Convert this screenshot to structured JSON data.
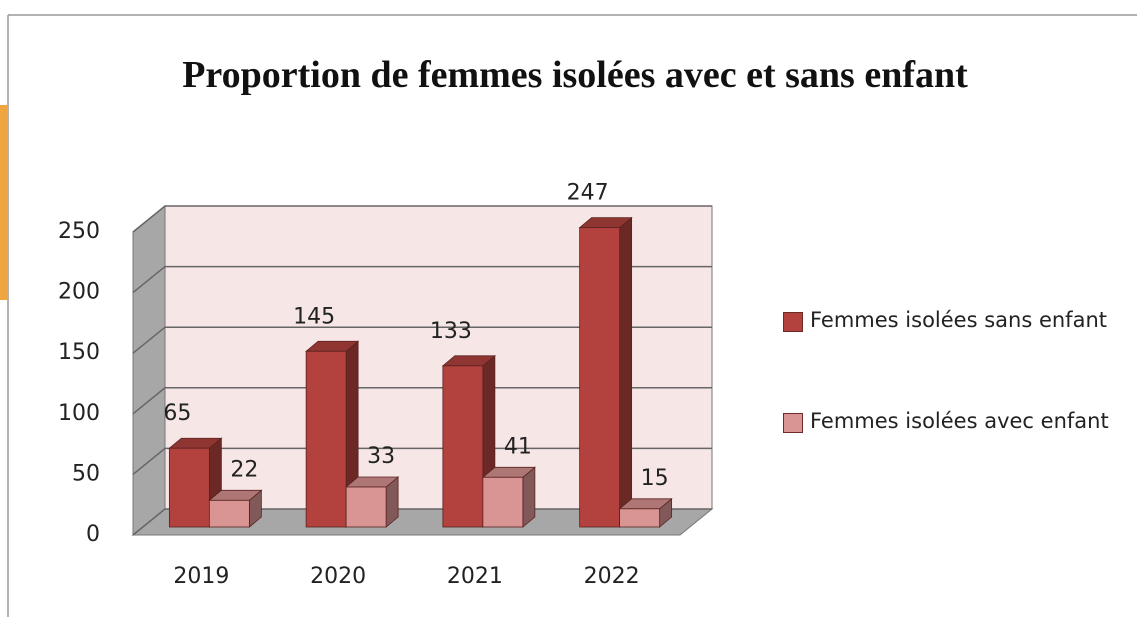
{
  "chart_data": {
    "type": "bar3d",
    "title": "Proportion de femmes isolées avec et sans enfant",
    "categories": [
      "2019",
      "2020",
      "2021",
      "2022"
    ],
    "series": [
      {
        "name": "Femmes isolées sans enfant",
        "color": "#b3423e",
        "values": [
          65,
          145,
          133,
          247
        ]
      },
      {
        "name": "Femmes isolées avec enfant",
        "color": "#d99594",
        "values": [
          22,
          33,
          41,
          15
        ]
      }
    ],
    "ylim": [
      0,
      250
    ],
    "yticks": [
      0,
      50,
      100,
      150,
      200,
      250
    ],
    "grid": true,
    "legend": "right"
  }
}
